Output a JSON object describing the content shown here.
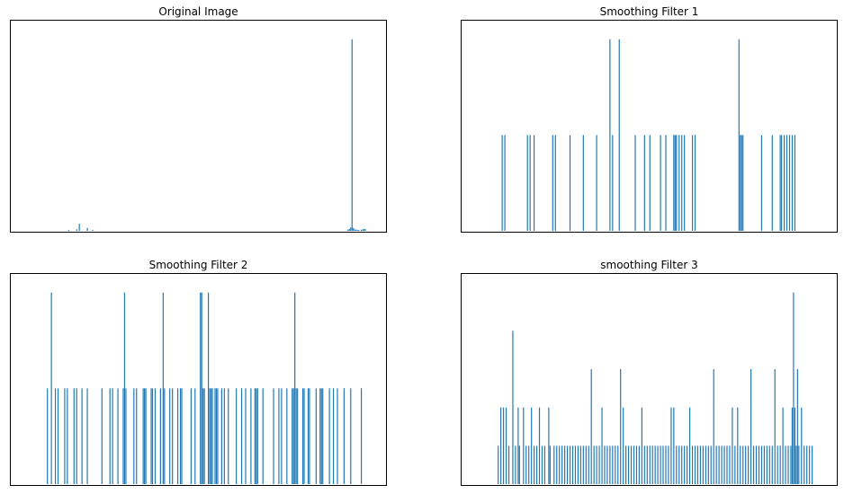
{
  "colors": {
    "bar": "#1f77b4",
    "axes": "#000000",
    "background": "#ffffff"
  },
  "chart_data": [
    {
      "type": "bar",
      "title": "Original Image",
      "xlabel": "",
      "ylabel": "",
      "grid": false,
      "x_ticks_visible": false,
      "y_ticks_visible": false,
      "xlim": [
        0,
        255
      ],
      "ylim": [
        0,
        21000
      ],
      "bars": [
        {
          "x": 30,
          "value": 100
        },
        {
          "x": 36,
          "value": 150
        },
        {
          "x": 38,
          "value": 750
        },
        {
          "x": 44,
          "value": 300
        },
        {
          "x": 48,
          "value": 100
        },
        {
          "x": 240,
          "value": 120
        },
        {
          "x": 241,
          "value": 200
        },
        {
          "x": 242,
          "value": 350
        },
        {
          "x": 243,
          "value": 20000
        },
        {
          "x": 244,
          "value": 300
        },
        {
          "x": 245,
          "value": 150
        },
        {
          "x": 246,
          "value": 120
        },
        {
          "x": 247,
          "value": 100
        },
        {
          "x": 248,
          "value": 100
        },
        {
          "x": 250,
          "value": 120
        },
        {
          "x": 251,
          "value": 150
        },
        {
          "x": 252,
          "value": 200
        },
        {
          "x": 253,
          "value": 180
        }
      ]
    },
    {
      "type": "bar",
      "title": "Smoothing Filter 1",
      "xlabel": "",
      "ylabel": "",
      "grid": false,
      "x_ticks_visible": false,
      "y_ticks_visible": false,
      "xlim": [
        0,
        255
      ],
      "ylim": [
        0,
        2.1
      ],
      "bars": [
        {
          "x": 17,
          "value": 1
        },
        {
          "x": 19,
          "value": 1
        },
        {
          "x": 36,
          "value": 1
        },
        {
          "x": 38,
          "value": 1
        },
        {
          "x": 41,
          "value": 1
        },
        {
          "x": 55,
          "value": 1
        },
        {
          "x": 57,
          "value": 1
        },
        {
          "x": 68,
          "value": 1
        },
        {
          "x": 78,
          "value": 1
        },
        {
          "x": 88,
          "value": 1
        },
        {
          "x": 98,
          "value": 2
        },
        {
          "x": 100,
          "value": 1
        },
        {
          "x": 105,
          "value": 2
        },
        {
          "x": 117,
          "value": 1
        },
        {
          "x": 124,
          "value": 1
        },
        {
          "x": 128,
          "value": 1
        },
        {
          "x": 136,
          "value": 1
        },
        {
          "x": 140,
          "value": 1
        },
        {
          "x": 146,
          "value": 1
        },
        {
          "x": 147,
          "value": 1
        },
        {
          "x": 148,
          "value": 1
        },
        {
          "x": 150,
          "value": 1
        },
        {
          "x": 152,
          "value": 1
        },
        {
          "x": 154,
          "value": 1
        },
        {
          "x": 160,
          "value": 1
        },
        {
          "x": 162,
          "value": 1
        },
        {
          "x": 195,
          "value": 2
        },
        {
          "x": 196,
          "value": 1
        },
        {
          "x": 197,
          "value": 1
        },
        {
          "x": 198,
          "value": 1
        },
        {
          "x": 212,
          "value": 1
        },
        {
          "x": 220,
          "value": 1
        },
        {
          "x": 226,
          "value": 1
        },
        {
          "x": 227,
          "value": 1
        },
        {
          "x": 229,
          "value": 1
        },
        {
          "x": 231,
          "value": 1
        },
        {
          "x": 233,
          "value": 1
        },
        {
          "x": 235,
          "value": 1
        },
        {
          "x": 237,
          "value": 1
        }
      ]
    },
    {
      "type": "bar",
      "title": "Smoothing Filter 2",
      "xlabel": "",
      "ylabel": "",
      "grid": false,
      "x_ticks_visible": false,
      "y_ticks_visible": false,
      "xlim": [
        0,
        255
      ],
      "ylim": [
        0,
        2.1
      ],
      "bars": [
        {
          "x": 14,
          "value": 1
        },
        {
          "x": 17,
          "value": 2
        },
        {
          "x": 20,
          "value": 1
        },
        {
          "x": 22,
          "value": 1
        },
        {
          "x": 27,
          "value": 1
        },
        {
          "x": 29,
          "value": 1
        },
        {
          "x": 34,
          "value": 1
        },
        {
          "x": 36,
          "value": 1
        },
        {
          "x": 40,
          "value": 1
        },
        {
          "x": 44,
          "value": 1
        },
        {
          "x": 55,
          "value": 1
        },
        {
          "x": 61,
          "value": 1
        },
        {
          "x": 63,
          "value": 1
        },
        {
          "x": 67,
          "value": 1
        },
        {
          "x": 71,
          "value": 1
        },
        {
          "x": 72,
          "value": 2
        },
        {
          "x": 73,
          "value": 1
        },
        {
          "x": 79,
          "value": 1
        },
        {
          "x": 81,
          "value": 1
        },
        {
          "x": 86,
          "value": 1
        },
        {
          "x": 87,
          "value": 1
        },
        {
          "x": 88,
          "value": 1
        },
        {
          "x": 92,
          "value": 1
        },
        {
          "x": 93,
          "value": 1
        },
        {
          "x": 95,
          "value": 1
        },
        {
          "x": 99,
          "value": 1
        },
        {
          "x": 101,
          "value": 2
        },
        {
          "x": 102,
          "value": 1
        },
        {
          "x": 106,
          "value": 1
        },
        {
          "x": 108,
          "value": 1
        },
        {
          "x": 112,
          "value": 1
        },
        {
          "x": 114,
          "value": 1
        },
        {
          "x": 115,
          "value": 1
        },
        {
          "x": 122,
          "value": 1
        },
        {
          "x": 125,
          "value": 1
        },
        {
          "x": 129,
          "value": 2
        },
        {
          "x": 130,
          "value": 2
        },
        {
          "x": 131,
          "value": 1
        },
        {
          "x": 132,
          "value": 1
        },
        {
          "x": 135,
          "value": 2
        },
        {
          "x": 136,
          "value": 1
        },
        {
          "x": 137,
          "value": 1
        },
        {
          "x": 138,
          "value": 1
        },
        {
          "x": 140,
          "value": 1
        },
        {
          "x": 141,
          "value": 1
        },
        {
          "x": 142,
          "value": 1
        },
        {
          "x": 145,
          "value": 1
        },
        {
          "x": 147,
          "value": 1
        },
        {
          "x": 150,
          "value": 1
        },
        {
          "x": 156,
          "value": 1
        },
        {
          "x": 160,
          "value": 1
        },
        {
          "x": 163,
          "value": 1
        },
        {
          "x": 167,
          "value": 1
        },
        {
          "x": 170,
          "value": 1
        },
        {
          "x": 171,
          "value": 1
        },
        {
          "x": 172,
          "value": 1
        },
        {
          "x": 176,
          "value": 1
        },
        {
          "x": 184,
          "value": 1
        },
        {
          "x": 188,
          "value": 1
        },
        {
          "x": 190,
          "value": 1
        },
        {
          "x": 194,
          "value": 1
        },
        {
          "x": 198,
          "value": 1
        },
        {
          "x": 199,
          "value": 1
        },
        {
          "x": 200,
          "value": 2
        },
        {
          "x": 201,
          "value": 1
        },
        {
          "x": 202,
          "value": 1
        },
        {
          "x": 206,
          "value": 1
        },
        {
          "x": 207,
          "value": 1
        },
        {
          "x": 210,
          "value": 1
        },
        {
          "x": 211,
          "value": 1
        },
        {
          "x": 216,
          "value": 1
        },
        {
          "x": 219,
          "value": 1
        },
        {
          "x": 220,
          "value": 1
        },
        {
          "x": 221,
          "value": 1
        },
        {
          "x": 226,
          "value": 1
        },
        {
          "x": 229,
          "value": 1
        },
        {
          "x": 232,
          "value": 1
        },
        {
          "x": 237,
          "value": 1
        },
        {
          "x": 242,
          "value": 1
        },
        {
          "x": 250,
          "value": 1
        }
      ]
    },
    {
      "type": "bar",
      "title": "smoothing Filter 3",
      "xlabel": "",
      "ylabel": "",
      "grid": false,
      "x_ticks_visible": false,
      "y_ticks_visible": false,
      "xlim": [
        0,
        255
      ],
      "ylim": [
        0,
        5.25
      ],
      "bars": [
        {
          "x": 14,
          "value": 1
        },
        {
          "x": 16,
          "value": 2
        },
        {
          "x": 18,
          "value": 2
        },
        {
          "x": 20,
          "value": 2
        },
        {
          "x": 22,
          "value": 1
        },
        {
          "x": 25,
          "value": 4
        },
        {
          "x": 27,
          "value": 1
        },
        {
          "x": 29,
          "value": 2
        },
        {
          "x": 30,
          "value": 1
        },
        {
          "x": 33,
          "value": 2
        },
        {
          "x": 35,
          "value": 1
        },
        {
          "x": 37,
          "value": 1
        },
        {
          "x": 39,
          "value": 2
        },
        {
          "x": 41,
          "value": 1
        },
        {
          "x": 43,
          "value": 1
        },
        {
          "x": 45,
          "value": 2
        },
        {
          "x": 47,
          "value": 1
        },
        {
          "x": 49,
          "value": 1
        },
        {
          "x": 52,
          "value": 2
        },
        {
          "x": 53,
          "value": 1
        },
        {
          "x": 56,
          "value": 1
        },
        {
          "x": 58,
          "value": 1
        },
        {
          "x": 60,
          "value": 1
        },
        {
          "x": 62,
          "value": 1
        },
        {
          "x": 64,
          "value": 1
        },
        {
          "x": 66,
          "value": 1
        },
        {
          "x": 68,
          "value": 1
        },
        {
          "x": 70,
          "value": 1
        },
        {
          "x": 72,
          "value": 1
        },
        {
          "x": 74,
          "value": 1
        },
        {
          "x": 76,
          "value": 1
        },
        {
          "x": 78,
          "value": 1
        },
        {
          "x": 80,
          "value": 1
        },
        {
          "x": 82,
          "value": 1
        },
        {
          "x": 84,
          "value": 3
        },
        {
          "x": 86,
          "value": 1
        },
        {
          "x": 88,
          "value": 1
        },
        {
          "x": 90,
          "value": 1
        },
        {
          "x": 92,
          "value": 2
        },
        {
          "x": 94,
          "value": 1
        },
        {
          "x": 96,
          "value": 1
        },
        {
          "x": 98,
          "value": 1
        },
        {
          "x": 100,
          "value": 1
        },
        {
          "x": 102,
          "value": 1
        },
        {
          "x": 104,
          "value": 1
        },
        {
          "x": 106,
          "value": 3
        },
        {
          "x": 108,
          "value": 2
        },
        {
          "x": 110,
          "value": 1
        },
        {
          "x": 112,
          "value": 1
        },
        {
          "x": 114,
          "value": 1
        },
        {
          "x": 116,
          "value": 1
        },
        {
          "x": 118,
          "value": 1
        },
        {
          "x": 120,
          "value": 1
        },
        {
          "x": 122,
          "value": 2
        },
        {
          "x": 124,
          "value": 1
        },
        {
          "x": 126,
          "value": 1
        },
        {
          "x": 128,
          "value": 1
        },
        {
          "x": 130,
          "value": 1
        },
        {
          "x": 132,
          "value": 1
        },
        {
          "x": 134,
          "value": 1
        },
        {
          "x": 136,
          "value": 1
        },
        {
          "x": 138,
          "value": 1
        },
        {
          "x": 140,
          "value": 1
        },
        {
          "x": 142,
          "value": 1
        },
        {
          "x": 144,
          "value": 2
        },
        {
          "x": 146,
          "value": 2
        },
        {
          "x": 148,
          "value": 1
        },
        {
          "x": 150,
          "value": 1
        },
        {
          "x": 152,
          "value": 1
        },
        {
          "x": 154,
          "value": 1
        },
        {
          "x": 156,
          "value": 1
        },
        {
          "x": 158,
          "value": 2
        },
        {
          "x": 160,
          "value": 1
        },
        {
          "x": 162,
          "value": 1
        },
        {
          "x": 164,
          "value": 1
        },
        {
          "x": 166,
          "value": 1
        },
        {
          "x": 168,
          "value": 1
        },
        {
          "x": 170,
          "value": 1
        },
        {
          "x": 172,
          "value": 1
        },
        {
          "x": 174,
          "value": 1
        },
        {
          "x": 176,
          "value": 3
        },
        {
          "x": 178,
          "value": 1
        },
        {
          "x": 180,
          "value": 1
        },
        {
          "x": 182,
          "value": 1
        },
        {
          "x": 184,
          "value": 1
        },
        {
          "x": 186,
          "value": 1
        },
        {
          "x": 188,
          "value": 1
        },
        {
          "x": 190,
          "value": 2
        },
        {
          "x": 192,
          "value": 1
        },
        {
          "x": 194,
          "value": 2
        },
        {
          "x": 196,
          "value": 1
        },
        {
          "x": 198,
          "value": 1
        },
        {
          "x": 200,
          "value": 1
        },
        {
          "x": 202,
          "value": 1
        },
        {
          "x": 204,
          "value": 3
        },
        {
          "x": 206,
          "value": 1
        },
        {
          "x": 208,
          "value": 1
        },
        {
          "x": 210,
          "value": 1
        },
        {
          "x": 212,
          "value": 1
        },
        {
          "x": 214,
          "value": 1
        },
        {
          "x": 216,
          "value": 1
        },
        {
          "x": 218,
          "value": 1
        },
        {
          "x": 220,
          "value": 1
        },
        {
          "x": 222,
          "value": 3
        },
        {
          "x": 224,
          "value": 1
        },
        {
          "x": 226,
          "value": 1
        },
        {
          "x": 228,
          "value": 2
        },
        {
          "x": 230,
          "value": 1
        },
        {
          "x": 232,
          "value": 1
        },
        {
          "x": 234,
          "value": 1
        },
        {
          "x": 235,
          "value": 2
        },
        {
          "x": 236,
          "value": 5
        },
        {
          "x": 237,
          "value": 2
        },
        {
          "x": 238,
          "value": 1
        },
        {
          "x": 239,
          "value": 3
        },
        {
          "x": 240,
          "value": 1
        },
        {
          "x": 242,
          "value": 2
        },
        {
          "x": 244,
          "value": 1
        },
        {
          "x": 246,
          "value": 1
        },
        {
          "x": 248,
          "value": 1
        },
        {
          "x": 250,
          "value": 1
        }
      ]
    }
  ]
}
